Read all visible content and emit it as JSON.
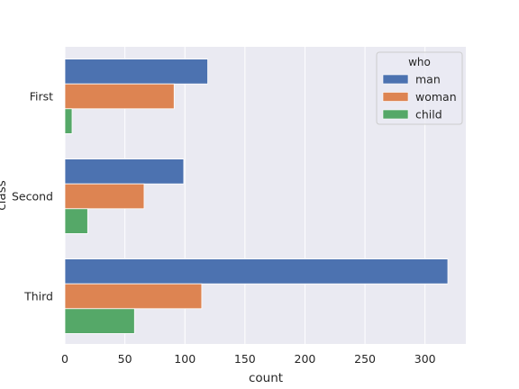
{
  "chart_data": {
    "type": "bar",
    "orientation": "horizontal",
    "categories": [
      "First",
      "Second",
      "Third"
    ],
    "series": [
      {
        "name": "man",
        "values": [
          119,
          99,
          319
        ],
        "color": "#4c72b0"
      },
      {
        "name": "woman",
        "values": [
          91,
          66,
          114
        ],
        "color": "#dd8452"
      },
      {
        "name": "child",
        "values": [
          6,
          19,
          58
        ],
        "color": "#55a868"
      }
    ],
    "xlabel": "count",
    "ylabel": "class",
    "xlim": [
      0,
      334
    ],
    "xticks": [
      0,
      50,
      100,
      150,
      200,
      250,
      300
    ],
    "legend": {
      "title": "who",
      "position": "top-right"
    },
    "grid": true,
    "background": "#eaeaf2"
  }
}
